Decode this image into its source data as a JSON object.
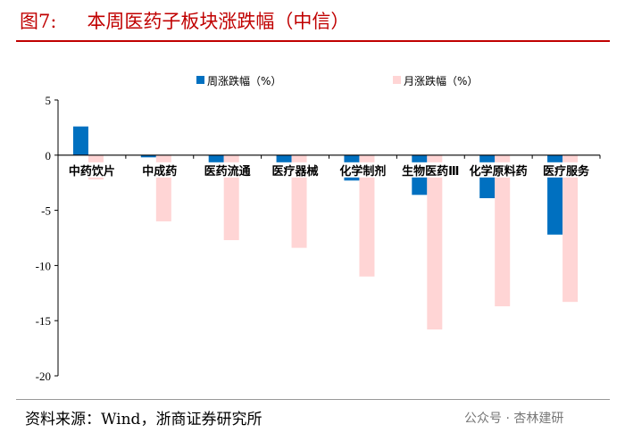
{
  "header": {
    "figure_no": "图7:",
    "title": "本周医药子板块涨跌幅（中信）"
  },
  "footer": {
    "source": "资料来源：Wind，浙商证券研究所",
    "watermark": "公众号 · 杏林建研"
  },
  "chart_data": {
    "type": "bar",
    "title": "本周医药子板块涨跌幅（中信）",
    "categories": [
      "中药饮片",
      "中成药",
      "医药流通",
      "医疗器械",
      "化学制剂",
      "生物医药Ⅲ",
      "化学原料药",
      "医疗服务"
    ],
    "series": [
      {
        "name": "周涨跌幅（%）",
        "color": "#0070c0",
        "values": [
          2.6,
          -0.2,
          -1.4,
          -1.2,
          -2.3,
          -3.6,
          -3.9,
          -7.2
        ]
      },
      {
        "name": "月涨跌幅（%）",
        "color": "#ffd5d5",
        "values": [
          -2.2,
          -6.0,
          -7.7,
          -8.4,
          -11.0,
          -15.8,
          -13.7,
          -13.3
        ]
      }
    ],
    "ylim": [
      -20,
      5
    ],
    "yticks": [
      5,
      0,
      -5,
      -10,
      -15,
      -20
    ],
    "legend": "top",
    "xlabel": "",
    "ylabel": ""
  }
}
